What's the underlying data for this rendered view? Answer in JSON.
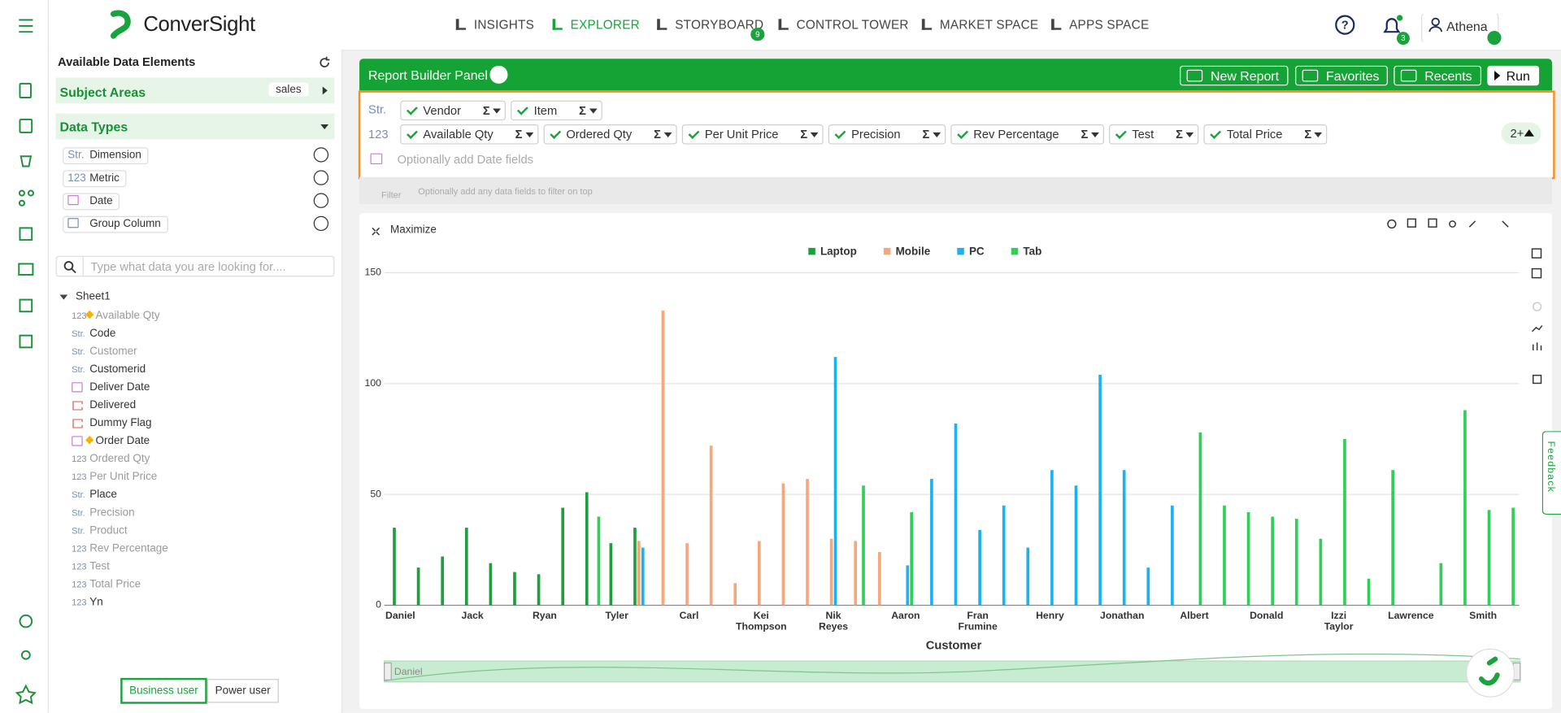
{
  "ui": {
    "logo": "ConverSight",
    "nav": [
      "INSIGHTS",
      "EXPLORER",
      "STORYBOARD",
      "CONTROL TOWER",
      "MARKET SPACE",
      "APPS SPACE"
    ],
    "storyboard_badge": "9",
    "bell_badge": "3",
    "user": "Athena",
    "left": {
      "title": "Available Data Elements",
      "subject_areas": "Subject Areas",
      "subject_value": "sales",
      "data_types": "Data Types",
      "types": [
        {
          "icon": "Str.",
          "label": "Dimension"
        },
        {
          "icon": "123",
          "label": "Metric"
        },
        {
          "kind": "date",
          "label": "Date"
        },
        {
          "kind": "group",
          "label": "Group Column"
        }
      ],
      "search_placeholder": "Type what data you are looking for....",
      "tree_root": "Sheet1",
      "fields": [
        {
          "icon": "123",
          "label": "Available Qty",
          "dim": true,
          "starred": true
        },
        {
          "icon": "Str.",
          "label": "Code"
        },
        {
          "icon": "Str.",
          "label": "Customer",
          "dim": true
        },
        {
          "icon": "Str.",
          "label": "Customerid"
        },
        {
          "kind": "date",
          "label": "Deliver Date"
        },
        {
          "kind": "flag",
          "label": "Delivered"
        },
        {
          "kind": "flag",
          "label": "Dummy Flag"
        },
        {
          "kind": "date",
          "label": "Order Date",
          "starred": true
        },
        {
          "icon": "123",
          "label": "Ordered Qty",
          "dim": true
        },
        {
          "icon": "123",
          "label": "Per Unit Price",
          "dim": true
        },
        {
          "icon": "Str.",
          "label": "Place"
        },
        {
          "icon": "Str.",
          "label": "Precision",
          "dim": true
        },
        {
          "icon": "Str.",
          "label": "Product",
          "dim": true
        },
        {
          "icon": "123",
          "label": "Rev Percentage",
          "dim": true
        },
        {
          "icon": "123",
          "label": "Test",
          "dim": true
        },
        {
          "icon": "123",
          "label": "Total Price",
          "dim": true
        },
        {
          "icon": "123",
          "label": "Yn"
        }
      ],
      "modes": [
        "Business user",
        "Power user"
      ]
    },
    "builder": {
      "title": "Report Builder Panel",
      "buttons": [
        "New Report",
        "Favorites",
        "Recents",
        "Run"
      ],
      "str_label": "Str.",
      "str_chips": [
        "Vendor",
        "Item"
      ],
      "num_label": "123",
      "num_chips": [
        "Available Qty",
        "Ordered Qty",
        "Per Unit Price",
        "Precision",
        "Rev Percentage",
        "Test",
        "Total Price"
      ],
      "sigma": "Σ",
      "date_placeholder": "Optionally add Date fields",
      "more": "2+",
      "filter": "Filter",
      "filter_hint": "Optionally add any data fields to filter on top"
    },
    "maximize": "Maximize",
    "slider_label": "Daniel",
    "feedback": "Feedback"
  },
  "chart_data": {
    "type": "bar",
    "x_label": "Customer",
    "categories": [
      "Daniel",
      null,
      null,
      "Jack",
      null,
      null,
      "Ryan",
      null,
      null,
      "Tyler",
      null,
      null,
      "Carl",
      null,
      null,
      "Kei Thompson",
      null,
      null,
      "Nik Reyes",
      null,
      null,
      "Aaron",
      null,
      null,
      "Fran Frumine",
      null,
      null,
      "Henry",
      null,
      null,
      "Jonathan",
      null,
      null,
      "Albert",
      null,
      null,
      "Donald",
      null,
      null,
      "Izzi Taylor",
      null,
      null,
      "Lawrence",
      null,
      null,
      "Smith",
      null
    ],
    "series": [
      {
        "name": "Laptop",
        "color": "#1f9e3f",
        "values": [
          35,
          17,
          22,
          35,
          19,
          15,
          14,
          44,
          51,
          28,
          35,
          null,
          null,
          null,
          null,
          null,
          null,
          null,
          null,
          null,
          null,
          null,
          null,
          null,
          null,
          null,
          null,
          null,
          null,
          null,
          null,
          null,
          null,
          null,
          null,
          null,
          null,
          null,
          null,
          null,
          null,
          null,
          null,
          null,
          null,
          null,
          null
        ]
      },
      {
        "name": "Mobile",
        "color": "#f7a77c",
        "values": [
          null,
          null,
          null,
          null,
          null,
          null,
          null,
          null,
          null,
          null,
          29,
          133,
          28,
          72,
          10,
          29,
          55,
          57,
          30,
          29,
          24,
          null,
          null,
          null,
          null,
          null,
          null,
          null,
          null,
          null,
          null,
          null,
          null,
          null,
          null,
          null,
          null,
          null,
          null,
          null,
          null,
          null,
          null,
          null,
          null,
          null,
          null
        ]
      },
      {
        "name": "PC",
        "color": "#1cb2f2",
        "values": [
          null,
          null,
          null,
          null,
          null,
          null,
          null,
          null,
          null,
          null,
          26,
          null,
          null,
          null,
          null,
          null,
          null,
          null,
          112,
          null,
          null,
          18,
          57,
          82,
          34,
          45,
          26,
          61,
          54,
          104,
          61,
          17,
          45,
          null,
          null,
          null,
          null,
          null,
          null,
          null,
          null,
          null,
          null,
          null,
          null,
          null,
          null
        ]
      },
      {
        "name": "Tab",
        "color": "#2fcf58",
        "values": [
          null,
          null,
          null,
          null,
          null,
          null,
          null,
          null,
          40,
          null,
          null,
          null,
          null,
          null,
          null,
          null,
          null,
          null,
          null,
          54,
          null,
          42,
          null,
          null,
          null,
          null,
          null,
          null,
          null,
          null,
          null,
          null,
          null,
          78,
          45,
          42,
          40,
          39,
          30,
          75,
          12,
          61,
          null,
          19,
          88,
          43,
          44
        ]
      }
    ],
    "ylim": [
      0,
      150
    ],
    "yticks": [
      0,
      50,
      100,
      150
    ],
    "grid": true,
    "legend": "top"
  }
}
